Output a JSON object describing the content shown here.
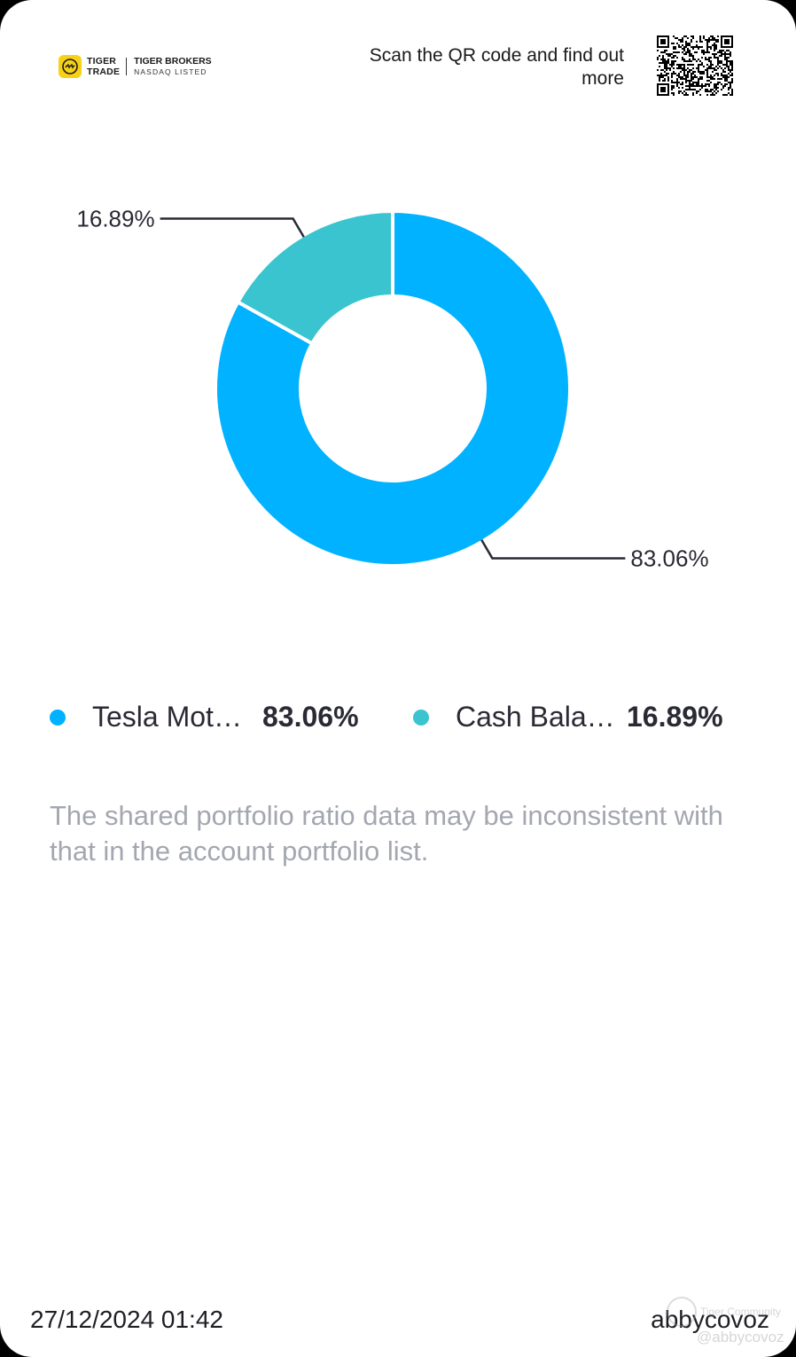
{
  "header": {
    "logo": {
      "line1": "TIGER",
      "line2": "TRADE",
      "brand": "TIGER BROKERS",
      "tagline": "NASDAQ LISTED"
    },
    "scan_text": "Scan the QR code and find out more"
  },
  "chart_data": {
    "type": "pie",
    "style": "donut",
    "slices": [
      {
        "label": "Tesla Mot…",
        "value": 83.06,
        "display": "83.06%",
        "color": "#00b2ff"
      },
      {
        "label": "Cash Bala…",
        "value": 16.89,
        "display": "16.89%",
        "color": "#3ac4cf"
      }
    ]
  },
  "legend": {
    "items": [
      {
        "name": "Tesla Mot…",
        "value": "83.06%",
        "color": "#00b2ff"
      },
      {
        "name": "Cash Bala…",
        "value": "16.89%",
        "color": "#3ac4cf"
      }
    ]
  },
  "disclaimer": "The shared portfolio ratio data may be inconsistent with that in the account portfolio list.",
  "footer": {
    "date": "27/12/2024 01:42",
    "username": "abbycovoz"
  },
  "watermark": {
    "line1": "Tiger Community",
    "line2": "@abbycovoz"
  }
}
